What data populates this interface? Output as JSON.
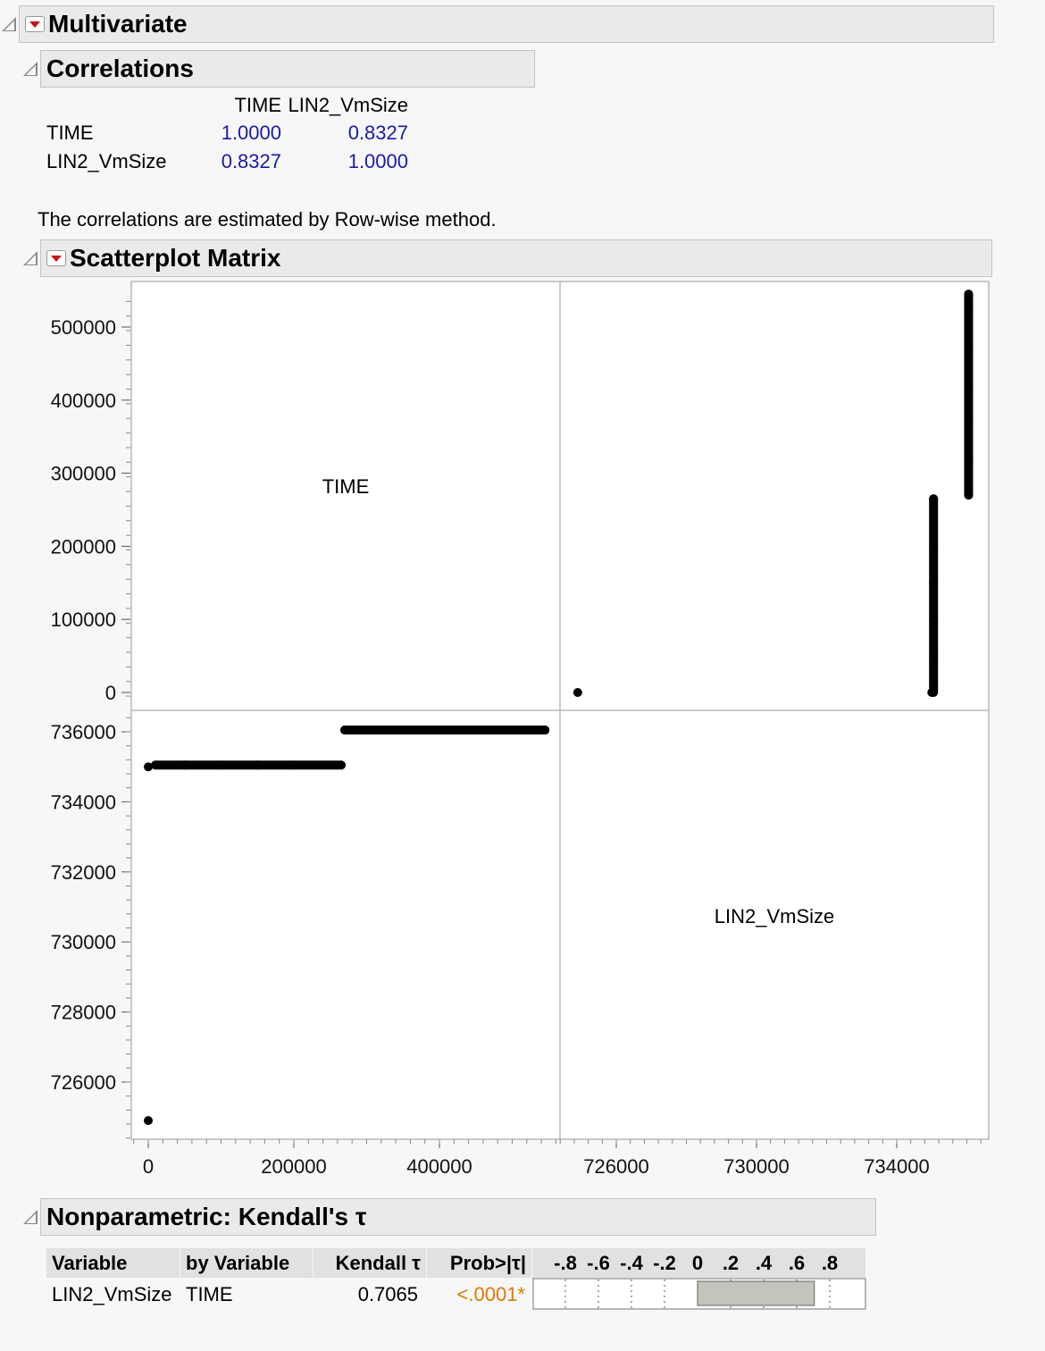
{
  "multivariate": {
    "title": "Multivariate"
  },
  "correlations": {
    "title": "Correlations",
    "columns": [
      "TIME",
      "LIN2_VmSize"
    ],
    "rows": [
      {
        "label": "TIME",
        "values": [
          "1.0000",
          "0.8327"
        ]
      },
      {
        "label": "LIN2_VmSize",
        "values": [
          "0.8327",
          "1.0000"
        ]
      }
    ],
    "note": "The correlations are estimated by Row-wise method."
  },
  "scatterplot_matrix": {
    "title": "Scatterplot Matrix",
    "diag_labels": [
      "TIME",
      "LIN2_VmSize"
    ],
    "time_ticks": [
      "0",
      "100000",
      "200000",
      "300000",
      "400000",
      "500000"
    ],
    "vmsize_ticks": [
      "726000",
      "728000",
      "730000",
      "732000",
      "734000",
      "736000"
    ],
    "x_ticks_time": [
      "0",
      "200000",
      "400000"
    ],
    "x_ticks_vmsize": [
      "726000",
      "730000",
      "734000"
    ]
  },
  "chart_data": {
    "type": "scatter",
    "variables": [
      "TIME",
      "LIN2_VmSize"
    ],
    "ranges": {
      "TIME": [
        -5000,
        555000
      ],
      "LIN2_VmSize": [
        724200,
        736400
      ]
    },
    "points": [
      {
        "TIME": 0,
        "LIN2_VmSize": 724900
      },
      {
        "TIME": 0,
        "LIN2_VmSize": 735000
      },
      {
        "TIME": 10000,
        "LIN2_VmSize": 735050
      },
      {
        "TIME": 50000,
        "LIN2_VmSize": 735050
      },
      {
        "TIME": 100000,
        "LIN2_VmSize": 735050
      },
      {
        "TIME": 150000,
        "LIN2_VmSize": 735050
      },
      {
        "TIME": 200000,
        "LIN2_VmSize": 735050
      },
      {
        "TIME": 265000,
        "LIN2_VmSize": 735050
      },
      {
        "TIME": 270000,
        "LIN2_VmSize": 736050
      },
      {
        "TIME": 320000,
        "LIN2_VmSize": 736050
      },
      {
        "TIME": 370000,
        "LIN2_VmSize": 736050
      },
      {
        "TIME": 420000,
        "LIN2_VmSize": 736050
      },
      {
        "TIME": 470000,
        "LIN2_VmSize": 736050
      },
      {
        "TIME": 530000,
        "LIN2_VmSize": 736050
      },
      {
        "TIME": 545000,
        "LIN2_VmSize": 736050
      }
    ],
    "grid": false
  },
  "kendall": {
    "title": "Nonparametric: Kendall's τ",
    "headers": [
      "Variable",
      "by Variable",
      "Kendall τ",
      "Prob>|τ|"
    ],
    "scale_labels": [
      "-.8",
      "-.6",
      "-.4",
      "-.2",
      "0",
      ".2",
      ".4",
      ".6",
      ".8"
    ],
    "row": {
      "variable": "LIN2_VmSize",
      "by_variable": "TIME",
      "tau": "0.7065",
      "prob": "<.0001*"
    },
    "tau_value": 0.7065
  },
  "colors": {
    "blue": "#1a1aa6",
    "orange": "#e07800",
    "header_bg": "#eaeaea"
  }
}
